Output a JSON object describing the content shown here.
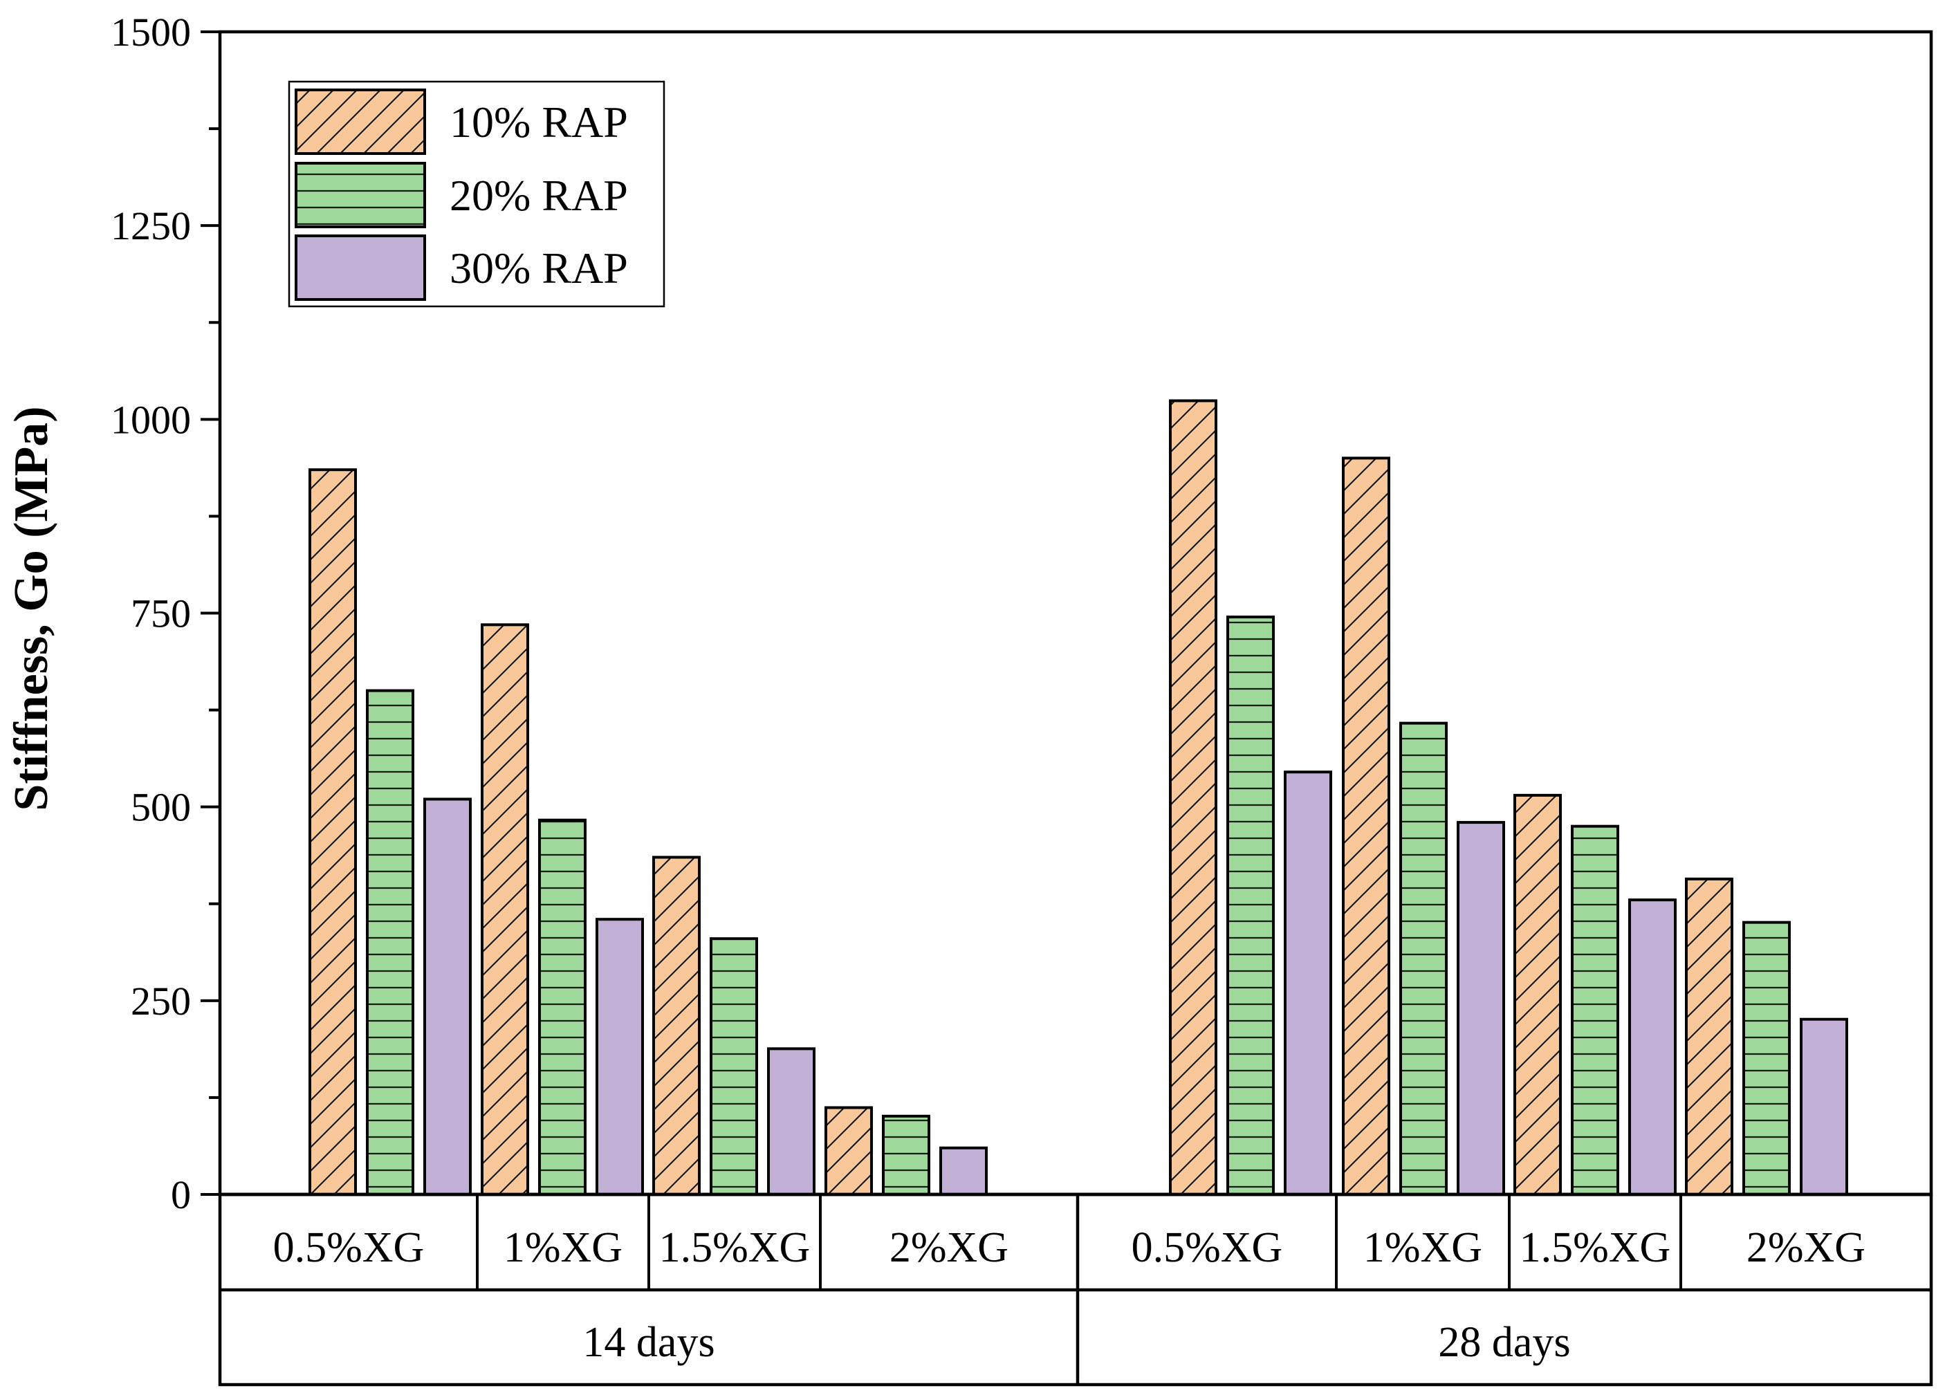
{
  "chart_data": {
    "type": "bar",
    "title": "",
    "xlabel": "",
    "ylabel": "Stiffness, Go (MPa)",
    "ylim": [
      0,
      1500
    ],
    "yticks": [
      "0",
      "250",
      "500",
      "750",
      "1000",
      "1250",
      "1500"
    ],
    "periods": [
      {
        "label": "14 days",
        "groups": [
          {
            "label": "0.5%XG",
            "values": [
              935,
              650,
              510
            ]
          },
          {
            "label": "1%XG",
            "values": [
              735,
              483,
              355
            ]
          },
          {
            "label": "1.5%XG",
            "values": [
              435,
              330,
              188
            ]
          },
          {
            "label": "2%XG",
            "values": [
              112,
              101,
              60
            ]
          }
        ]
      },
      {
        "label": "28 days",
        "groups": [
          {
            "label": "0.5%XG",
            "values": [
              1024,
              745,
              545
            ]
          },
          {
            "label": "1%XG",
            "values": [
              950,
              608,
              480
            ]
          },
          {
            "label": "1.5%XG",
            "values": [
              515,
              475,
              380
            ]
          },
          {
            "label": "2%XG",
            "values": [
              407,
              351,
              226
            ]
          }
        ]
      }
    ],
    "series": [
      {
        "name": "10% RAP",
        "color": "#F9C89A",
        "pattern": "diagonal-hatch"
      },
      {
        "name": "20% RAP",
        "color": "#9ED89A",
        "pattern": "horizontal-lines"
      },
      {
        "name": "30% RAP",
        "color": "#C1AFD6",
        "pattern": "solid"
      }
    ],
    "legend_position": "top-left"
  }
}
